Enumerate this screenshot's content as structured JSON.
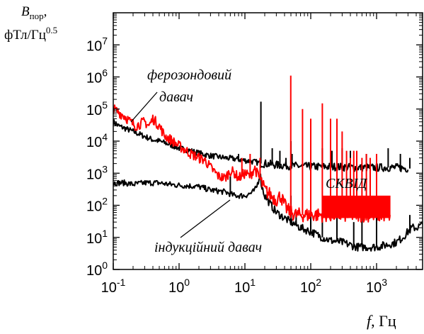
{
  "chart_data": {
    "type": "line",
    "x_scale": "log",
    "y_scale": "log",
    "xlim": [
      0.1,
      5000
    ],
    "ylim": [
      1,
      100000000
    ],
    "grid": false,
    "legend": "none",
    "x_ticks": [
      {
        "value": 0.1,
        "base": "10",
        "exp": "-1"
      },
      {
        "value": 1,
        "base": "10",
        "exp": "0"
      },
      {
        "value": 10,
        "base": "10",
        "exp": "1"
      },
      {
        "value": 100,
        "base": "10",
        "exp": "2"
      },
      {
        "value": 1000,
        "base": "10",
        "exp": "3"
      }
    ],
    "y_ticks": [
      {
        "value": 1,
        "base": "10",
        "exp": "0"
      },
      {
        "value": 10,
        "base": "10",
        "exp": "1"
      },
      {
        "value": 100,
        "base": "10",
        "exp": "2"
      },
      {
        "value": 1000,
        "base": "10",
        "exp": "3"
      },
      {
        "value": 10000,
        "base": "10",
        "exp": "4"
      },
      {
        "value": 100000,
        "base": "10",
        "exp": "5"
      },
      {
        "value": 1000000,
        "base": "10",
        "exp": "6"
      },
      {
        "value": 10000000,
        "base": "10",
        "exp": "7"
      }
    ],
    "ylabel": {
      "symbol": "B",
      "subscript": "пор",
      "suffix": ",",
      "units_prefix": "фТл/Гц",
      "units_exp": "0.5"
    },
    "xlabel": {
      "symbol": "f",
      "suffix": ", Гц"
    },
    "annotations": {
      "ferro": [
        "ферозондовий",
        "давач"
      ],
      "squid": "СКВІД",
      "induction": "індукційний давач"
    },
    "series": [
      {
        "color": "#000000",
        "points": [
          [
            0.1,
            40000
          ],
          [
            0.12,
            30000
          ],
          [
            0.15,
            25000
          ],
          [
            0.2,
            20000
          ],
          [
            0.3,
            14000
          ],
          [
            0.4,
            11000
          ],
          [
            0.5,
            10000
          ],
          [
            0.7,
            8000
          ],
          [
            1,
            6000
          ],
          [
            1.5,
            5000
          ],
          [
            2,
            4200
          ],
          [
            3,
            3500
          ],
          [
            5,
            3000
          ],
          [
            7,
            2800
          ],
          [
            10,
            2500
          ],
          [
            15,
            2200
          ],
          [
            17,
            2000
          ],
          [
            20,
            2000
          ],
          [
            30,
            1800
          ],
          [
            50,
            1700
          ],
          [
            100,
            1600
          ],
          [
            200,
            1600
          ],
          [
            500,
            1500
          ],
          [
            1000,
            1500
          ],
          [
            2000,
            1500
          ],
          [
            3000,
            1400
          ]
        ],
        "spikes": [
          [
            8,
            4000
          ],
          [
            17.5,
            170000
          ],
          [
            26,
            6000
          ],
          [
            34,
            5000
          ],
          [
            42,
            3000
          ],
          [
            50,
            10000
          ],
          [
            52,
            4000
          ],
          [
            100,
            5000
          ],
          [
            150,
            6000
          ],
          [
            210,
            5000
          ],
          [
            250,
            4000
          ],
          [
            300,
            6000
          ],
          [
            400,
            5000
          ],
          [
            500,
            4000
          ],
          [
            700,
            4000
          ],
          [
            1500,
            6000
          ],
          [
            2300,
            4000
          ],
          [
            3200,
            3000
          ]
        ]
      },
      {
        "color": "#000000",
        "points": [
          [
            0.1,
            500
          ],
          [
            0.15,
            500
          ],
          [
            0.2,
            450
          ],
          [
            0.3,
            500
          ],
          [
            0.5,
            500
          ],
          [
            0.7,
            450
          ],
          [
            1,
            420
          ],
          [
            1.5,
            400
          ],
          [
            2,
            380
          ],
          [
            3,
            300
          ],
          [
            5,
            260
          ],
          [
            7,
            200
          ],
          [
            10,
            200
          ],
          [
            13,
            250
          ],
          [
            15,
            350
          ],
          [
            17,
            1000
          ],
          [
            18,
            400
          ],
          [
            20,
            200
          ],
          [
            25,
            100
          ],
          [
            30,
            60
          ],
          [
            40,
            40
          ],
          [
            50,
            30
          ],
          [
            70,
            20
          ],
          [
            100,
            15
          ],
          [
            150,
            10
          ],
          [
            200,
            8
          ],
          [
            300,
            7
          ],
          [
            500,
            5
          ],
          [
            800,
            5
          ],
          [
            1000,
            5
          ],
          [
            1500,
            6
          ],
          [
            2000,
            7
          ],
          [
            2500,
            10
          ],
          [
            3000,
            15
          ],
          [
            3500,
            20
          ],
          [
            4000,
            20
          ],
          [
            5000,
            25
          ]
        ],
        "spikes": [
          [
            6,
            800
          ],
          [
            50,
            200
          ],
          [
            60,
            60
          ],
          [
            100,
            50
          ],
          [
            150,
            40
          ],
          [
            250,
            40
          ],
          [
            450,
            30
          ],
          [
            600,
            40
          ],
          [
            1000,
            200
          ],
          [
            3200,
            50
          ]
        ]
      },
      {
        "color": "#ff0000",
        "points": [
          [
            0.1,
            100000
          ],
          [
            0.12,
            80000
          ],
          [
            0.15,
            60000
          ],
          [
            0.18,
            40000
          ],
          [
            0.22,
            30000
          ],
          [
            0.3,
            40000
          ],
          [
            0.35,
            30000
          ],
          [
            0.4,
            50000
          ],
          [
            0.5,
            30000
          ],
          [
            0.6,
            15000
          ],
          [
            0.8,
            10000
          ],
          [
            1,
            7000
          ],
          [
            1.3,
            5000
          ],
          [
            1.5,
            4000
          ],
          [
            2,
            3000
          ],
          [
            2.5,
            2500
          ],
          [
            3,
            1500
          ],
          [
            4,
            800
          ],
          [
            5,
            700
          ],
          [
            6,
            1200
          ],
          [
            7,
            1000
          ],
          [
            8,
            700
          ],
          [
            10,
            1000
          ],
          [
            12,
            800
          ],
          [
            14,
            1500
          ],
          [
            16,
            800
          ],
          [
            18,
            500
          ],
          [
            20,
            300
          ],
          [
            25,
            200
          ],
          [
            30,
            150
          ],
          [
            35,
            200
          ],
          [
            40,
            100
          ],
          [
            45,
            70
          ],
          [
            50,
            60
          ],
          [
            60,
            50
          ],
          [
            70,
            50
          ],
          [
            100,
            50
          ],
          [
            200,
            50
          ],
          [
            500,
            50
          ],
          [
            1000,
            50
          ],
          [
            1600,
            50
          ]
        ],
        "spikes": [
          [
            9,
            3000
          ],
          [
            12,
            4000
          ],
          [
            17,
            3000
          ],
          [
            49.7,
            1100000
          ],
          [
            75,
            100000
          ],
          [
            100,
            50000
          ],
          [
            150,
            150000
          ],
          [
            200,
            50000
          ],
          [
            250,
            50000
          ],
          [
            300,
            20000
          ],
          [
            350,
            5000
          ],
          [
            400,
            3000
          ],
          [
            450,
            5000
          ],
          [
            500,
            5000
          ],
          [
            600,
            3000
          ],
          [
            700,
            4000
          ],
          [
            800,
            3000
          ],
          [
            1000,
            4000
          ]
        ],
        "band": {
          "x": [
            150,
            1600
          ],
          "y": [
            40,
            200
          ]
        }
      }
    ]
  }
}
